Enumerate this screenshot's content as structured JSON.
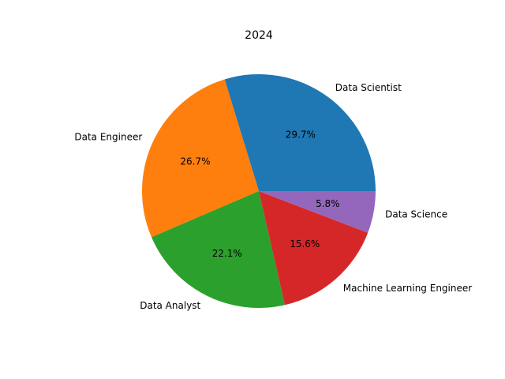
{
  "chart_data": {
    "type": "pie",
    "title": "2024",
    "start_angle_deg": 0,
    "direction": "counterclockwise",
    "slices": [
      {
        "label": "Data Scientist",
        "value": 29.7,
        "pct_label": "29.7%",
        "color": "#1f77b4"
      },
      {
        "label": "Data Engineer",
        "value": 26.7,
        "pct_label": "26.7%",
        "color": "#ff7f0e"
      },
      {
        "label": "Data Analyst",
        "value": 22.1,
        "pct_label": "22.1%",
        "color": "#2ca02c"
      },
      {
        "label": "Machine Learning Engineer",
        "value": 15.6,
        "pct_label": "15.6%",
        "color": "#d62728"
      },
      {
        "label": "Data Science",
        "value": 5.8,
        "pct_label": "5.8%",
        "color": "#9467bd"
      }
    ]
  }
}
